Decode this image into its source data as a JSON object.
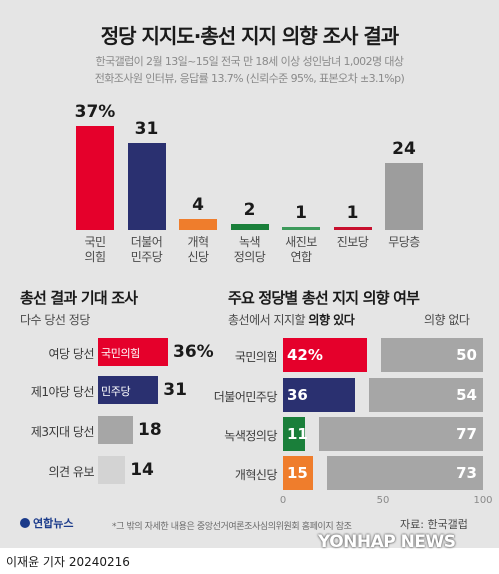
{
  "title": "정당 지지도·총선 지지 의향 조사 결과",
  "subtitle_lines": [
    "한국갤럽이 2월 13일~15일 전국 만 18세 이상 성인남녀 1,002명 대상",
    "전화조사원 인터뷰, 응답률 13.7% (신뢰수준 95%, 표본오차 ±3.1%p)"
  ],
  "colors": {
    "ppp": "#e5002b",
    "dp": "#2a3070",
    "reform": "#ef7d2c",
    "green": "#1a7f3a",
    "newprog": "#3d9a5b",
    "progressive": "#c8102e",
    "none": "#9d9d9d",
    "gray": "#a6a6a6",
    "light": "#d3d3d3"
  },
  "chart_data": [
    {
      "type": "bar",
      "title": "정당 지지도",
      "unit": "%",
      "categories": [
        "국민\n의힘",
        "더불어\n민주당",
        "개혁\n신당",
        "녹색\n정의당",
        "새진보\n연합",
        "진보당",
        "무당층"
      ],
      "values": [
        37,
        31,
        4,
        2,
        1,
        1,
        24
      ],
      "value_labels": [
        "37%",
        "31",
        "4",
        "2",
        "1",
        "1",
        "24"
      ],
      "colors": [
        "#e5002b",
        "#2a3070",
        "#ef7d2c",
        "#1a7f3a",
        "#3d9a5b",
        "#c8102e",
        "#9d9d9d"
      ],
      "ylim": [
        0,
        37
      ]
    },
    {
      "type": "bar",
      "orientation": "horizontal",
      "title": "총선 결과 기대 조사",
      "caption": "다수 당선 정당",
      "categories": [
        "여당 당선",
        "제1야당 당선",
        "제3지대 당선",
        "의견 유보"
      ],
      "in_bar_labels": [
        "국민의힘",
        "민주당",
        "",
        ""
      ],
      "values": [
        36,
        31,
        18,
        14
      ],
      "value_labels": [
        "36%",
        "31",
        "18",
        "14"
      ],
      "colors": [
        "#e5002b",
        "#2a3070",
        "#a6a6a6",
        "#d3d3d3"
      ],
      "xlim": [
        0,
        36
      ]
    },
    {
      "type": "bar",
      "orientation": "horizontal",
      "stacked": true,
      "title": "주요 정당별 총선 지지 의향 여부",
      "caption_prefix": "총선에서 지지할 ",
      "caption_bold": "의향 있다",
      "caption_right": "의향 없다",
      "categories": [
        "국민의힘",
        "더불어민주당",
        "녹색정의당",
        "개혁신당"
      ],
      "series": [
        {
          "name": "의향 있다",
          "values": [
            42,
            36,
            11,
            15
          ],
          "value_labels": [
            "42%",
            "36",
            "11",
            "15"
          ],
          "colors": [
            "#e5002b",
            "#2a3070",
            "#1a7f3a",
            "#ef7d2c"
          ]
        },
        {
          "name": "의향 없다",
          "values": [
            50,
            54,
            77,
            73
          ],
          "value_labels": [
            "50",
            "54",
            "77",
            "73"
          ],
          "color": "#a6a6a6"
        }
      ],
      "xticks": [
        "0",
        "50",
        "100"
      ],
      "xlim": [
        0,
        100
      ]
    }
  ],
  "footnote": "*그 밖의 자세한 내용은 중앙선거여론조사심의위원회 홈페이지 참조",
  "source": "자료: 한국갤럽",
  "logo": "연합뉴스",
  "watermark": "YONHAP NEWS",
  "byline": "이재윤 기자  20240216"
}
